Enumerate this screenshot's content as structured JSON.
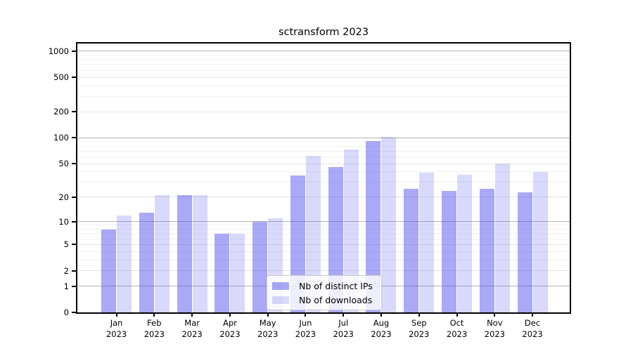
{
  "page": {
    "title": "sctransform 2023"
  },
  "chart_data": {
    "type": "bar",
    "title": "sctransform 2023",
    "categories": [
      "Jan 2023",
      "Feb 2023",
      "Mar 2023",
      "Apr 2023",
      "May 2023",
      "Jun 2023",
      "Jul 2023",
      "Aug 2023",
      "Sep 2023",
      "Oct 2023",
      "Nov 2023",
      "Dec 2023"
    ],
    "series": [
      {
        "name": "Nb of distinct IPs",
        "color": "rgba(80,80,235,0.49)",
        "values": [
          8,
          13,
          21,
          7,
          10,
          36,
          46,
          92,
          25,
          24,
          25,
          23
        ]
      },
      {
        "name": "Nb of downloads",
        "color": "rgba(80,80,235,0.22)",
        "values": [
          12,
          21,
          21,
          7,
          11,
          62,
          73,
          102,
          39,
          37,
          50,
          40
        ]
      }
    ],
    "yscale": "log10(1+x)",
    "ylim": [
      0,
      1220
    ],
    "yticks": [
      0,
      1,
      2,
      5,
      10,
      20,
      50,
      100,
      200,
      500,
      1000
    ],
    "grid": true,
    "legend_position": "lower center",
    "xlabel": "",
    "ylabel": ""
  },
  "colors": {
    "grid_decade": "#b4b4b4",
    "grid_sub": "#e4e4e4",
    "grid_minor": "#f0f0f0",
    "spine": "#000000",
    "background": "#ffffff"
  }
}
